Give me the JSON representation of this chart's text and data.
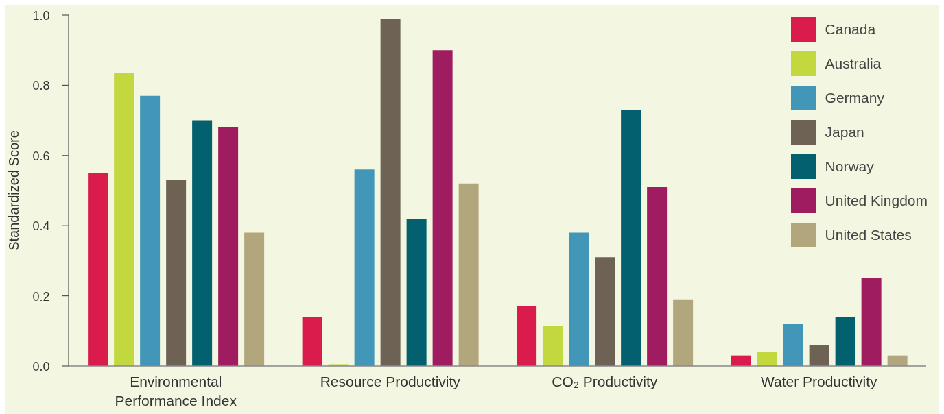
{
  "chart_data": {
    "type": "bar",
    "ylabel": "Standardized Score",
    "categories": [
      "Environmental Performance Index",
      "Resource Productivity",
      "CO₂ Productivity",
      "Water Productivity"
    ],
    "series": [
      {
        "name": "Canada",
        "color": "#d91c4b",
        "values": [
          0.55,
          0.14,
          0.17,
          0.03
        ]
      },
      {
        "name": "Australia",
        "color": "#c3d83e",
        "values": [
          0.835,
          0.005,
          0.115,
          0.04
        ]
      },
      {
        "name": "Germany",
        "color": "#4297b8",
        "values": [
          0.77,
          0.56,
          0.38,
          0.12
        ]
      },
      {
        "name": "Japan",
        "color": "#6e6255",
        "values": [
          0.53,
          0.99,
          0.31,
          0.06
        ]
      },
      {
        "name": "Norway",
        "color": "#03606e",
        "values": [
          0.7,
          0.42,
          0.73,
          0.14
        ]
      },
      {
        "name": "United Kingdom",
        "color": "#9e1c5f",
        "values": [
          0.68,
          0.9,
          0.51,
          0.25
        ]
      },
      {
        "name": "United States",
        "color": "#b2a67c",
        "values": [
          0.38,
          0.52,
          0.19,
          0.03
        ]
      }
    ],
    "ylim": [
      0,
      1
    ],
    "yticks": [
      {
        "value": 0,
        "label": "0.0"
      },
      {
        "value": 0.2,
        "label": "0.2"
      },
      {
        "value": 0.4,
        "label": "0.4"
      },
      {
        "value": 0.6,
        "label": "0.6"
      },
      {
        "value": 0.8,
        "label": "0.8"
      },
      {
        "value": 1,
        "label": "1.0"
      }
    ],
    "grid": false,
    "legend": "top right"
  }
}
